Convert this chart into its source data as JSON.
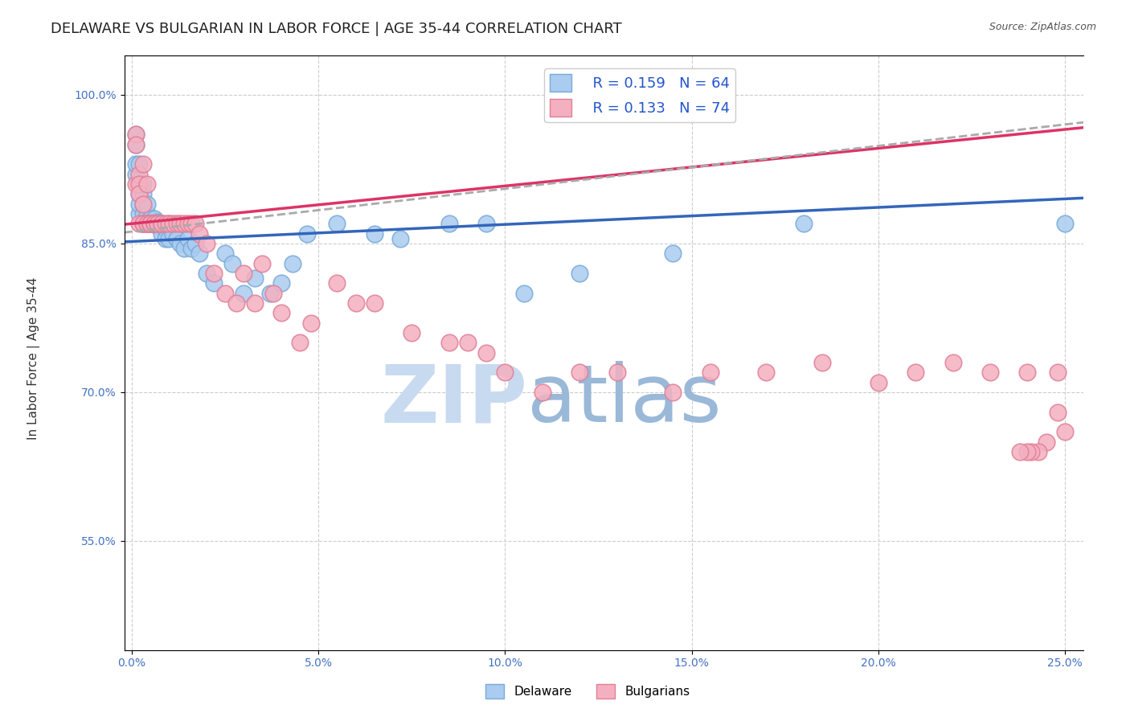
{
  "title": "DELAWARE VS BULGARIAN IN LABOR FORCE | AGE 35-44 CORRELATION CHART",
  "source": "Source: ZipAtlas.com",
  "xlabel": "",
  "ylabel": "In Labor Force | Age 35-44",
  "xlim": [
    -0.002,
    0.255
  ],
  "ylim": [
    0.44,
    1.04
  ],
  "xticks": [
    0.0,
    0.05,
    0.1,
    0.15,
    0.2,
    0.25
  ],
  "xticklabels": [
    "0.0%",
    "5.0%",
    "10.0%",
    "15.0%",
    "20.0%",
    "25.0%"
  ],
  "yticks": [
    0.55,
    0.7,
    0.85,
    1.0
  ],
  "yticklabels": [
    "55.0%",
    "70.0%",
    "85.0%",
    "100.0%"
  ],
  "ytick_color": "#4472c4",
  "xtick_color": "#4472c4",
  "grid_color": "#cccccc",
  "bg_color": "#ffffff",
  "legend_r_delaware": "R = 0.159",
  "legend_n_delaware": "N = 64",
  "legend_r_bulgarian": "R = 0.133",
  "legend_n_bulgarian": "N = 74",
  "delaware_color": "#aaccf0",
  "bulgarian_color": "#f4b0c0",
  "delaware_edge": "#7aaad8",
  "bulgarian_edge": "#e08098",
  "trend_delaware_color": "#3366bb",
  "trend_bulgarian_color": "#dd3366",
  "trend_dashed_color": "#aaaaaa",
  "watermark_zip": "ZIP",
  "watermark_atlas": "atlas",
  "watermark_color_zip": "#c8d8f0",
  "watermark_color_atlas": "#9ab8d8",
  "title_fontsize": 13,
  "axis_label_fontsize": 11,
  "tick_fontsize": 10,
  "legend_fontsize": 13,
  "delaware_x": [
    0.001,
    0.001,
    0.001,
    0.001,
    0.002,
    0.002,
    0.002,
    0.002,
    0.002,
    0.003,
    0.003,
    0.003,
    0.003,
    0.003,
    0.003,
    0.004,
    0.004,
    0.004,
    0.004,
    0.005,
    0.005,
    0.005,
    0.005,
    0.006,
    0.006,
    0.006,
    0.007,
    0.007,
    0.007,
    0.008,
    0.008,
    0.008,
    0.009,
    0.009,
    0.01,
    0.01,
    0.011,
    0.012,
    0.013,
    0.014,
    0.015,
    0.016,
    0.017,
    0.018,
    0.02,
    0.022,
    0.025,
    0.027,
    0.03,
    0.033,
    0.037,
    0.04,
    0.043,
    0.047,
    0.055,
    0.065,
    0.072,
    0.085,
    0.095,
    0.105,
    0.12,
    0.145,
    0.18,
    0.25
  ],
  "delaware_y": [
    0.92,
    0.93,
    0.95,
    0.96,
    0.88,
    0.89,
    0.9,
    0.91,
    0.93,
    0.87,
    0.88,
    0.89,
    0.9,
    0.91,
    0.87,
    0.87,
    0.88,
    0.89,
    0.87,
    0.87,
    0.87,
    0.87,
    0.875,
    0.87,
    0.875,
    0.87,
    0.868,
    0.87,
    0.872,
    0.868,
    0.86,
    0.87,
    0.865,
    0.855,
    0.87,
    0.855,
    0.86,
    0.855,
    0.85,
    0.845,
    0.855,
    0.845,
    0.85,
    0.84,
    0.82,
    0.81,
    0.84,
    0.83,
    0.8,
    0.815,
    0.8,
    0.81,
    0.83,
    0.86,
    0.87,
    0.86,
    0.855,
    0.87,
    0.87,
    0.8,
    0.82,
    0.84,
    0.87,
    0.87
  ],
  "bulgarian_x": [
    0.001,
    0.001,
    0.001,
    0.002,
    0.002,
    0.002,
    0.002,
    0.003,
    0.003,
    0.003,
    0.003,
    0.004,
    0.004,
    0.004,
    0.005,
    0.005,
    0.005,
    0.005,
    0.006,
    0.006,
    0.006,
    0.007,
    0.007,
    0.008,
    0.008,
    0.009,
    0.01,
    0.011,
    0.012,
    0.013,
    0.014,
    0.015,
    0.016,
    0.017,
    0.018,
    0.02,
    0.022,
    0.025,
    0.028,
    0.03,
    0.033,
    0.035,
    0.038,
    0.04,
    0.045,
    0.048,
    0.055,
    0.06,
    0.065,
    0.075,
    0.085,
    0.09,
    0.095,
    0.1,
    0.11,
    0.12,
    0.13,
    0.145,
    0.155,
    0.17,
    0.185,
    0.2,
    0.21,
    0.22,
    0.23,
    0.24,
    0.248,
    0.25,
    0.248,
    0.245,
    0.243,
    0.241,
    0.24,
    0.238
  ],
  "bulgarian_y": [
    0.96,
    0.95,
    0.91,
    0.92,
    0.91,
    0.9,
    0.87,
    0.93,
    0.89,
    0.87,
    0.87,
    0.91,
    0.87,
    0.87,
    0.87,
    0.87,
    0.87,
    0.87,
    0.87,
    0.87,
    0.87,
    0.87,
    0.87,
    0.87,
    0.87,
    0.87,
    0.87,
    0.87,
    0.87,
    0.87,
    0.87,
    0.87,
    0.87,
    0.87,
    0.86,
    0.85,
    0.82,
    0.8,
    0.79,
    0.82,
    0.79,
    0.83,
    0.8,
    0.78,
    0.75,
    0.77,
    0.81,
    0.79,
    0.79,
    0.76,
    0.75,
    0.75,
    0.74,
    0.72,
    0.7,
    0.72,
    0.72,
    0.7,
    0.72,
    0.72,
    0.73,
    0.71,
    0.72,
    0.73,
    0.72,
    0.72,
    0.72,
    0.66,
    0.68,
    0.65,
    0.64,
    0.64,
    0.64,
    0.64
  ]
}
